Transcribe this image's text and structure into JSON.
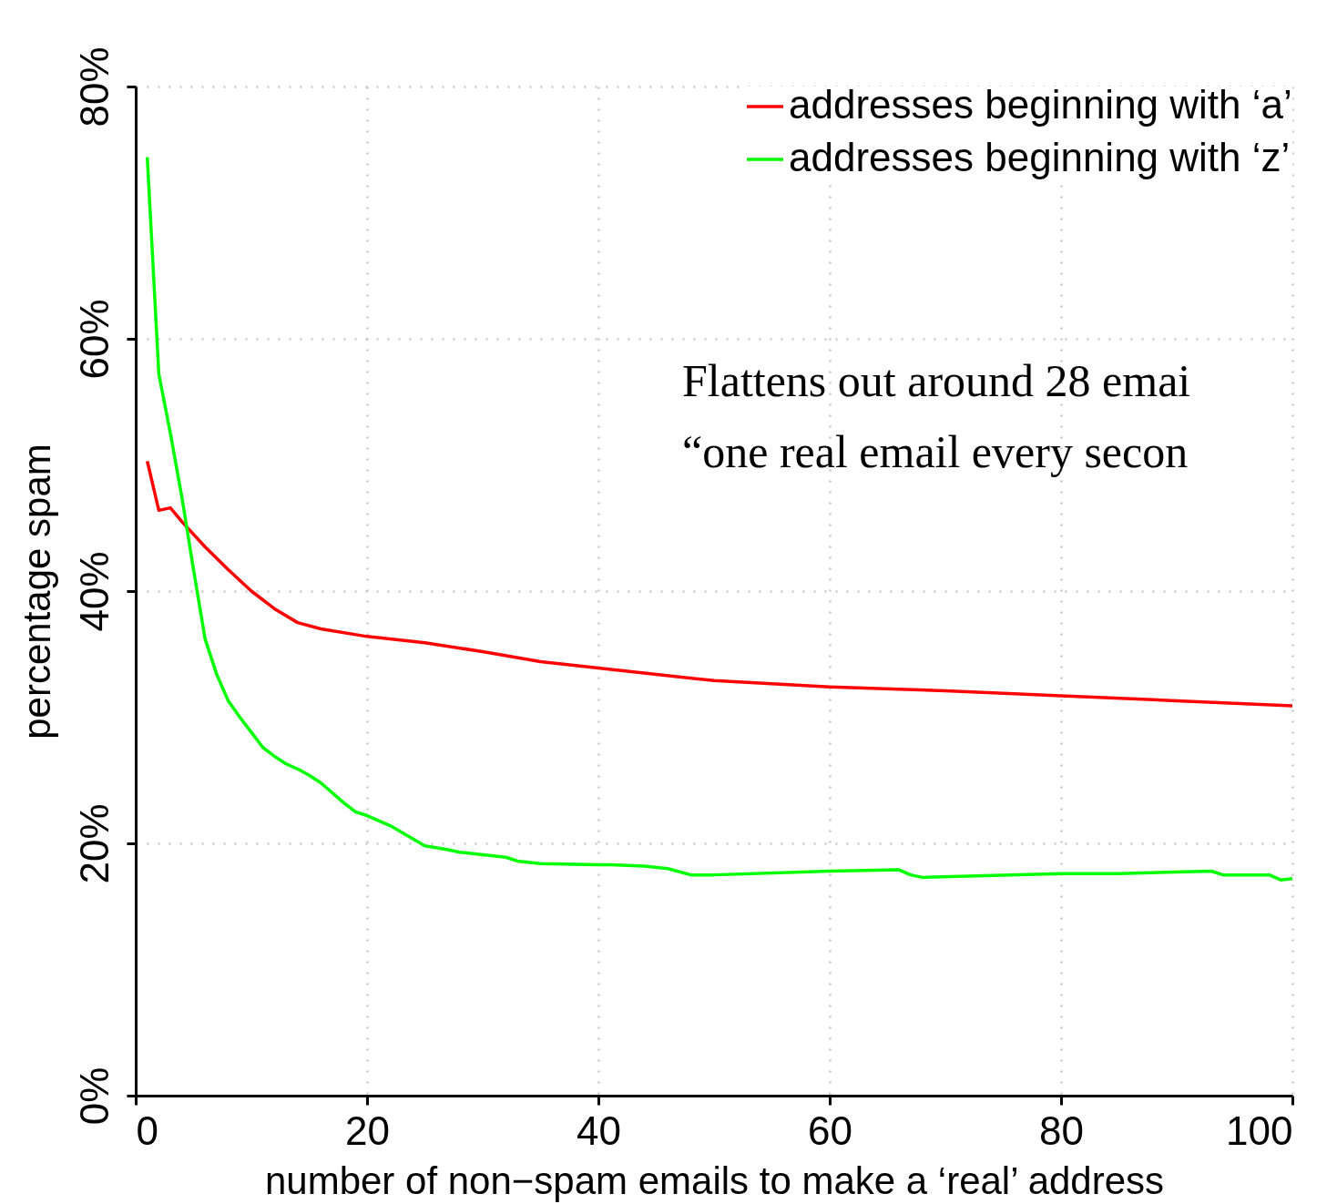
{
  "chart_data": {
    "type": "line",
    "xlabel": "number of non−spam emails to make a ‘real’ address",
    "ylabel": "percentage spam",
    "xlim": [
      0,
      100
    ],
    "xticks": [
      0,
      20,
      40,
      60,
      80,
      100
    ],
    "ylim": [
      0,
      80
    ],
    "yticks": [
      {
        "value": 0,
        "label": "0%"
      },
      {
        "value": 20,
        "label": "20%"
      },
      {
        "value": 40,
        "label": "40%"
      },
      {
        "value": 60,
        "label": "60%"
      },
      {
        "value": 80,
        "label": "80%"
      }
    ],
    "grid": true,
    "legend": "top right",
    "line_style": "solid",
    "marker": "none",
    "annotations": [
      "Flattens out around 28 emai",
      "“one real email every secon"
    ],
    "series": [
      {
        "name": "addresses beginning with ‘a’",
        "color": "#ff0000",
        "x": [
          1,
          2,
          3,
          4,
          6,
          8,
          10,
          12,
          14,
          16,
          20,
          25,
          30,
          35,
          40,
          50,
          60,
          70,
          80,
          90,
          100
        ],
        "values": [
          50.3,
          46.4,
          46.6,
          45.5,
          43.5,
          41.7,
          40,
          38.6,
          37.5,
          37,
          36.4,
          35.9,
          35.2,
          34.4,
          33.9,
          32.9,
          32.4,
          32.1,
          31.7,
          31.3,
          30.9
        ]
      },
      {
        "name": "addresses beginning with ‘z’",
        "color": "#00ff00",
        "x": [
          1,
          2,
          3,
          4,
          5,
          6,
          7,
          8,
          9,
          10,
          11,
          12,
          13,
          14,
          15,
          16,
          18,
          19,
          20,
          21,
          22,
          25,
          27,
          28,
          30,
          32,
          33,
          35,
          40,
          41,
          44,
          46,
          48,
          50,
          60,
          66,
          67,
          68,
          80,
          85,
          93,
          94,
          98,
          99,
          100
        ],
        "values": [
          74.4,
          57.2,
          52.5,
          47.4,
          41.7,
          36.2,
          33.4,
          31.3,
          30,
          28.8,
          27.6,
          26.9,
          26.3,
          25.9,
          25.4,
          24.8,
          23.2,
          22.5,
          22.2,
          21.8,
          21.4,
          19.8,
          19.5,
          19.3,
          19.1,
          18.9,
          18.6,
          18.4,
          18.3,
          18.3,
          18.2,
          18,
          17.5,
          17.5,
          17.8,
          17.9,
          17.5,
          17.3,
          17.6,
          17.6,
          17.8,
          17.5,
          17.5,
          17.1,
          17.2
        ]
      }
    ]
  }
}
